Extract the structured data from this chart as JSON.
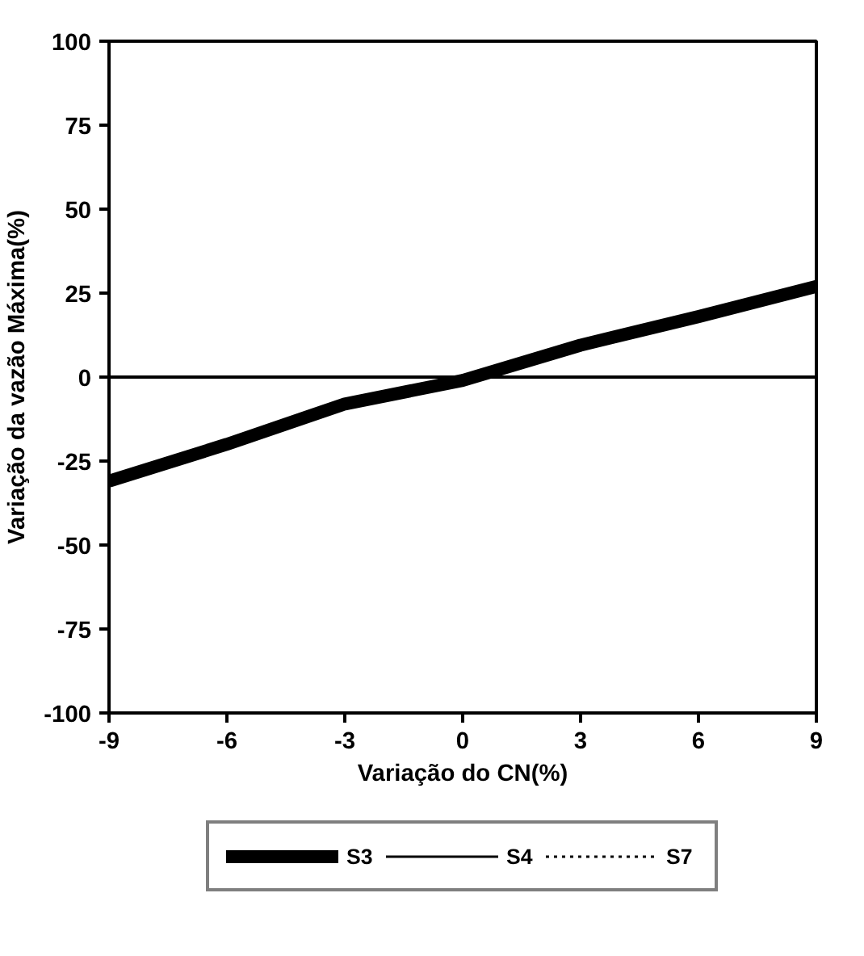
{
  "chart_data": {
    "type": "line",
    "xlabel": "Variação do CN(%)",
    "ylabel": "Variação da vazão Máxima(%)",
    "x": [
      -9,
      -6,
      -3,
      0,
      3,
      6,
      9
    ],
    "series": [
      {
        "name": "S3",
        "color": "#000000",
        "line_style": "solid",
        "values": [
          -31,
          -20,
          -8,
          -1,
          9.5,
          18,
          27
        ]
      },
      {
        "name": "S4",
        "color": "#000000",
        "line_style": "solid",
        "values": [
          null,
          null,
          null,
          null,
          null,
          null,
          null
        ]
      },
      {
        "name": "S7",
        "color": "#000000",
        "line_style": "dotted",
        "values": [
          null,
          null,
          null,
          null,
          null,
          null,
          null
        ]
      }
    ],
    "xlim": [
      -9,
      9
    ],
    "xticks": [
      -9,
      -6,
      -3,
      0,
      3,
      6,
      9
    ],
    "ylim": [
      -100,
      100
    ],
    "yticks": [
      -100,
      -75,
      -50,
      -25,
      0,
      25,
      50,
      75,
      100
    ],
    "ref_lines": [
      {
        "axis": "y",
        "value": 0
      }
    ],
    "grid": false,
    "legend": "bottom",
    "marker": "none"
  }
}
